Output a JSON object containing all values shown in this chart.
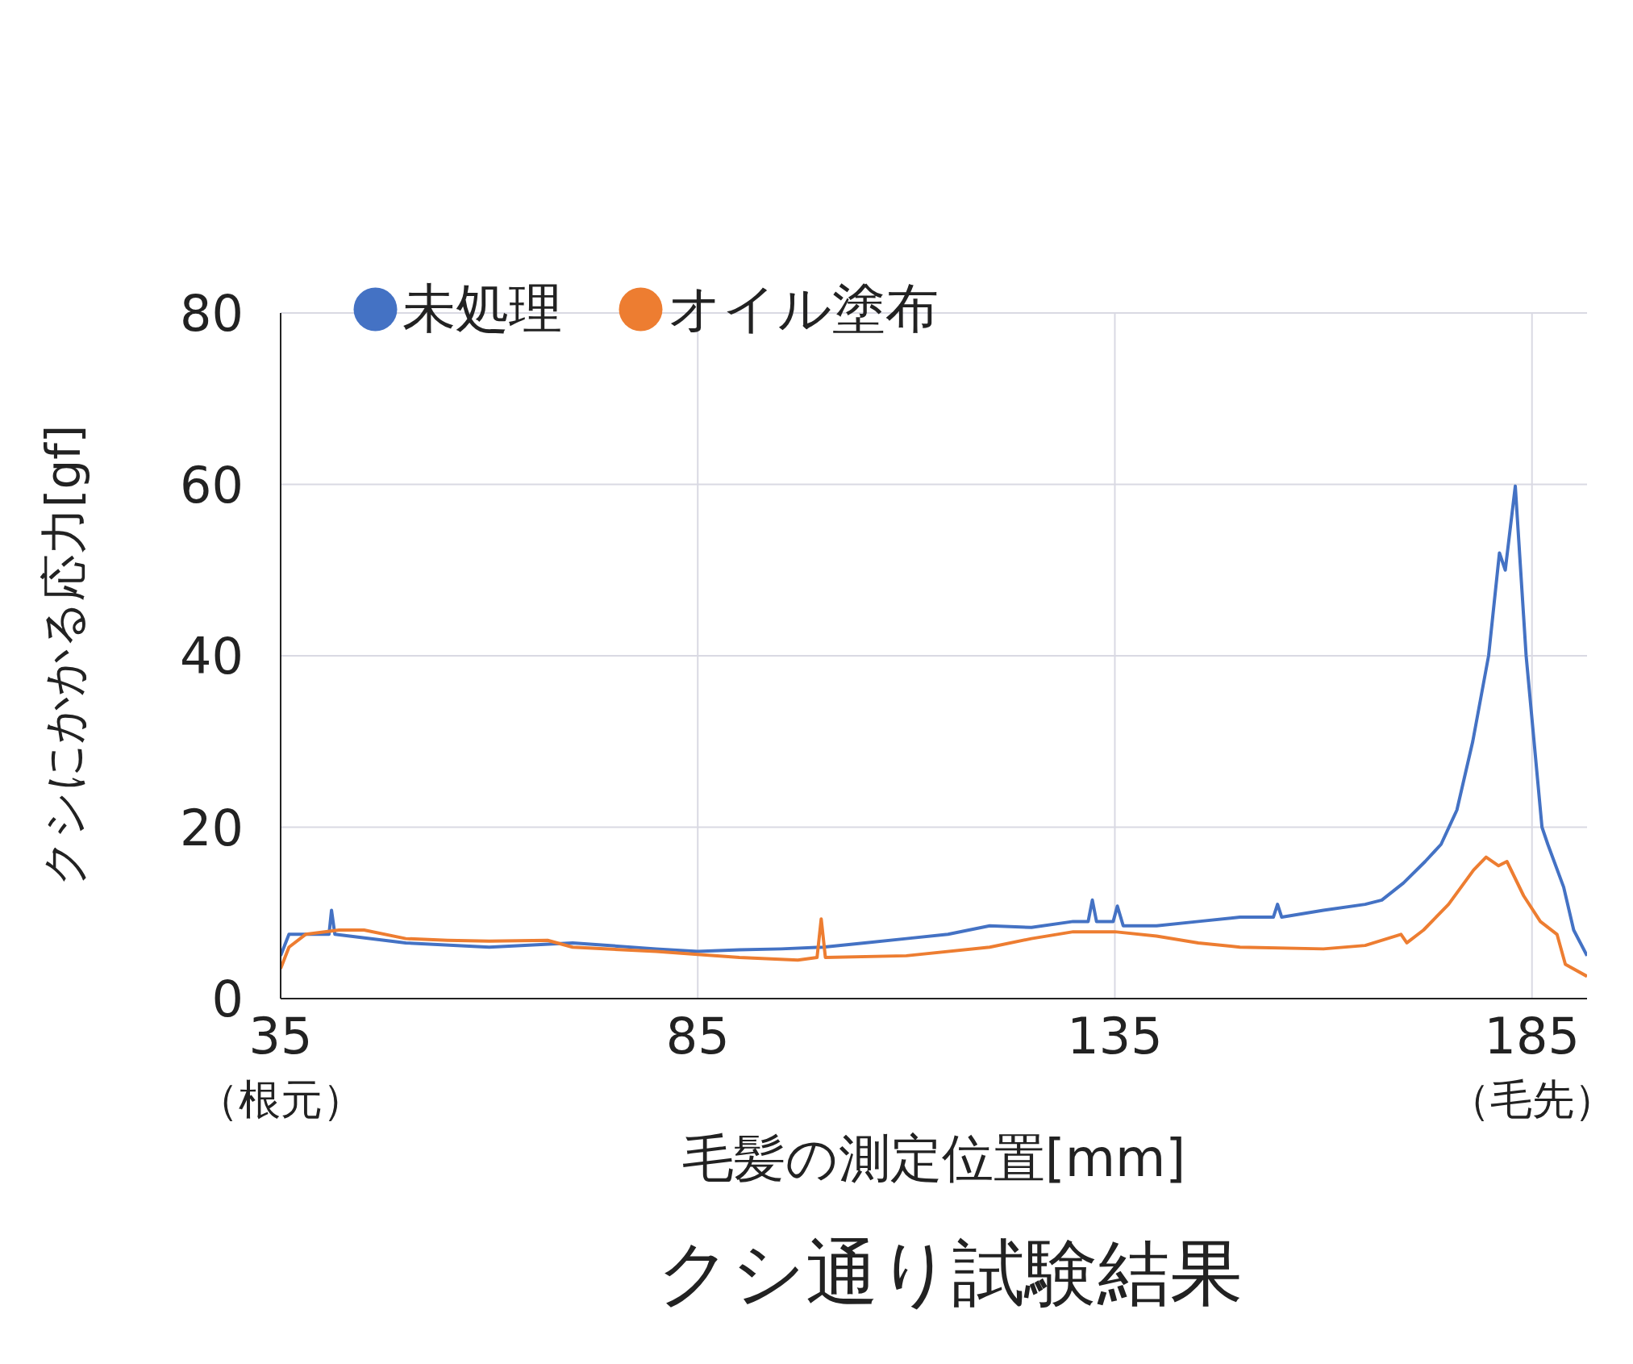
{
  "chart_data": {
    "type": "line",
    "title": "クシ通り試験結果",
    "xlabel": "毛髪の測定位置[mm]",
    "ylabel": "クシにかかる応力[gf]",
    "xlim": [
      35,
      191.6
    ],
    "xticks": [
      35,
      85,
      135,
      185
    ],
    "annotations": [
      "（根元）",
      "（毛先）"
    ],
    "ylim": [
      0,
      80
    ],
    "yticks": [
      0,
      20,
      40,
      60,
      80
    ],
    "grid": true,
    "legend": "top left",
    "marker": "none",
    "line_style": "solid",
    "series": [
      {
        "name": "未処理",
        "color": "#4472c4",
        "x": [
          35,
          36,
          40,
          40.8,
          41.1,
          41.5,
          50,
          60,
          70,
          80,
          85,
          90,
          95,
          100,
          105,
          110,
          115,
          120,
          125,
          130,
          131.8,
          132.3,
          132.8,
          134.8,
          135.3,
          136,
          140,
          145,
          150,
          154,
          154.5,
          155,
          160,
          165,
          167,
          169.6,
          172.2,
          174.1,
          176,
          177.9,
          179.8,
          181.1,
          181.8,
          183,
          184.3,
          186.2,
          186.9,
          188.8,
          190,
          191.6
        ],
        "values": [
          5,
          7.5,
          7.5,
          7.5,
          10.3,
          7.5,
          6.5,
          6,
          6.5,
          5.8,
          5.5,
          5.7,
          5.8,
          6,
          6.5,
          7,
          7.5,
          8.5,
          8.3,
          9,
          9,
          11.5,
          9,
          9,
          10.8,
          8.5,
          8.5,
          9,
          9.5,
          9.5,
          11,
          9.5,
          10.3,
          11,
          11.5,
          13.5,
          16,
          18,
          22,
          30,
          40,
          52,
          50,
          59.8,
          40,
          20,
          18,
          13,
          8,
          5
        ]
      },
      {
        "name": "オイル塗布",
        "color": "#ed7d31",
        "x": [
          35,
          36,
          38,
          42,
          45,
          50,
          55,
          60,
          67,
          70,
          80,
          90,
          97,
          99.3,
          99.8,
          100.3,
          110,
          120,
          125,
          130,
          135,
          140,
          145,
          150,
          160,
          165,
          169.3,
          170,
          172,
          175,
          178,
          179.5,
          181,
          182,
          184,
          186,
          188,
          189,
          191.6
        ],
        "values": [
          3.5,
          6,
          7.5,
          8,
          8,
          7,
          6.8,
          6.7,
          6.8,
          6,
          5.5,
          4.8,
          4.5,
          4.8,
          9.3,
          4.8,
          5,
          6,
          7,
          7.8,
          7.8,
          7.3,
          6.5,
          6,
          5.8,
          6.2,
          7.5,
          6.5,
          8,
          11,
          15,
          16.5,
          15.5,
          16,
          12,
          9,
          7.5,
          4,
          2.6
        ]
      }
    ]
  }
}
